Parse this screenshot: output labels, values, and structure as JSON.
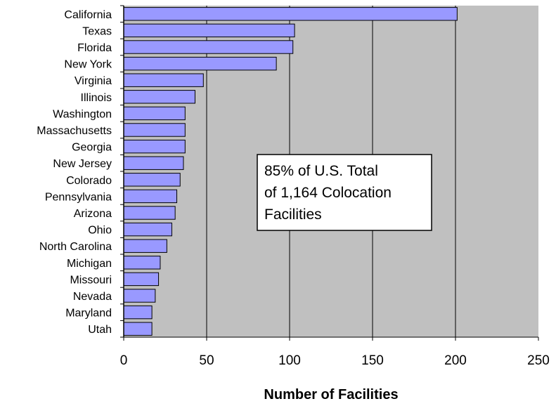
{
  "chart_data": {
    "type": "bar",
    "orientation": "horizontal",
    "categories": [
      "California",
      "Texas",
      "Florida",
      "New York",
      "Virginia",
      "Illinois",
      "Washington",
      "Massachusetts",
      "Georgia",
      "New Jersey",
      "Colorado",
      "Pennsylvania",
      "Arizona",
      "Ohio",
      "North Carolina",
      "Michigan",
      "Missouri",
      "Nevada",
      "Maryland",
      "Utah"
    ],
    "values": [
      201,
      103,
      102,
      92,
      48,
      43,
      37,
      37,
      37,
      36,
      34,
      32,
      31,
      29,
      26,
      22,
      21,
      19,
      17,
      17
    ],
    "xlabel": "Number of Facilities",
    "ylabel": "",
    "xlim": [
      0,
      250
    ],
    "xticks": [
      "0",
      "50",
      "100",
      "150",
      "200",
      "250"
    ],
    "grid": "vertical",
    "legend": "none",
    "annotation_lines": [
      "85% of U.S. Total",
      "of 1,164 Colocation",
      "Facilities"
    ],
    "colors": {
      "bar_fill": "#9999ff",
      "bar_stroke": "#000000",
      "plot_background": "#c0c0c0",
      "gridline": "#000000"
    }
  }
}
